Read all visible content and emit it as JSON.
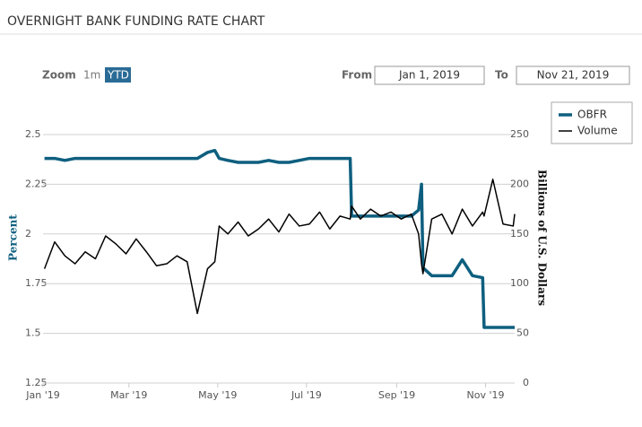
{
  "controls": {
    "zoom_label": "Zoom",
    "buttons": [
      "1m",
      "YTD"
    ],
    "from_label": "From",
    "from_value": "Jan 1, 2019",
    "to_label": "To",
    "to_value": "Nov 21, 2019"
  },
  "chart_data": {
    "type": "line",
    "title": "OVERNIGHT BANK FUNDING RATE CHART",
    "y_label": "Percent",
    "y2_label": "Billions of U.S. Dollars",
    "x": [
      "2019-01-02",
      "2019-01-09",
      "2019-01-16",
      "2019-01-23",
      "2019-01-30",
      "2019-02-06",
      "2019-02-13",
      "2019-02-20",
      "2019-02-27",
      "2019-03-06",
      "2019-03-13",
      "2019-03-20",
      "2019-03-27",
      "2019-04-03",
      "2019-04-10",
      "2019-04-17",
      "2019-04-24",
      "2019-04-29",
      "2019-05-02",
      "2019-05-08",
      "2019-05-15",
      "2019-05-22",
      "2019-05-29",
      "2019-06-05",
      "2019-06-12",
      "2019-06-19",
      "2019-06-26",
      "2019-07-03",
      "2019-07-10",
      "2019-07-17",
      "2019-07-24",
      "2019-07-31",
      "2019-08-01",
      "2019-08-07",
      "2019-08-14",
      "2019-08-21",
      "2019-08-28",
      "2019-09-04",
      "2019-09-11",
      "2019-09-16",
      "2019-09-18",
      "2019-09-19",
      "2019-09-25",
      "2019-10-02",
      "2019-10-09",
      "2019-10-16",
      "2019-10-23",
      "2019-10-30",
      "2019-10-31",
      "2019-11-06",
      "2019-11-13",
      "2019-11-20",
      "2019-11-21"
    ],
    "xlim": [
      "2019-01-01",
      "2019-11-21"
    ],
    "xticks": [
      {
        "value": "2019-01-01",
        "label": "Jan '19"
      },
      {
        "value": "2019-03-01",
        "label": "Mar '19"
      },
      {
        "value": "2019-05-01",
        "label": "May '19"
      },
      {
        "value": "2019-07-01",
        "label": "Jul '19"
      },
      {
        "value": "2019-09-01",
        "label": "Sep '19"
      },
      {
        "value": "2019-11-01",
        "label": "Nov '19"
      }
    ],
    "ylim": [
      1.25,
      2.5
    ],
    "yticks": [
      1.25,
      1.5,
      1.75,
      2,
      2.25,
      2.5
    ],
    "y2lim": [
      0,
      250
    ],
    "y2ticks": [
      0,
      50,
      100,
      150,
      200,
      250
    ],
    "grid": true,
    "legend": "top-right",
    "series": [
      {
        "name": "OBFR",
        "color": "#0e5f7f",
        "values": [
          2.38,
          2.38,
          2.37,
          2.38,
          2.38,
          2.38,
          2.38,
          2.38,
          2.38,
          2.38,
          2.38,
          2.38,
          2.38,
          2.38,
          2.38,
          2.38,
          2.41,
          2.42,
          2.38,
          2.37,
          2.36,
          2.36,
          2.36,
          2.37,
          2.36,
          2.36,
          2.37,
          2.38,
          2.38,
          2.38,
          2.38,
          2.38,
          2.09,
          2.09,
          2.09,
          2.09,
          2.09,
          2.09,
          2.09,
          2.12,
          2.25,
          1.83,
          1.79,
          1.79,
          1.79,
          1.87,
          1.79,
          1.78,
          1.53,
          1.53,
          1.53,
          1.53,
          1.53
        ]
      },
      {
        "name": "Volume",
        "color": "#000000",
        "axis": "y2",
        "values": [
          115,
          142,
          128,
          120,
          132,
          125,
          148,
          140,
          130,
          145,
          132,
          118,
          120,
          128,
          122,
          70,
          115,
          122,
          158,
          150,
          162,
          148,
          155,
          165,
          152,
          170,
          158,
          160,
          172,
          155,
          168,
          165,
          178,
          165,
          175,
          168,
          172,
          165,
          170,
          150,
          120,
          110,
          165,
          170,
          150,
          175,
          158,
          172,
          168,
          205,
          160,
          158,
          170
        ]
      }
    ]
  }
}
